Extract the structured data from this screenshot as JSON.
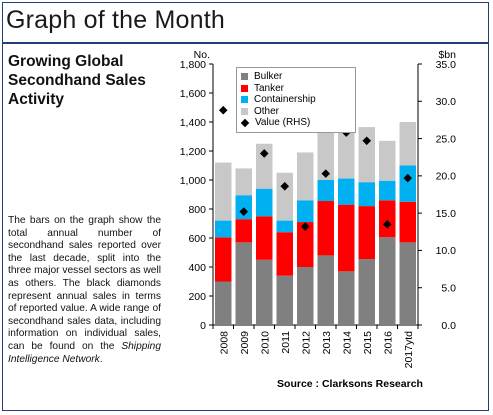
{
  "header": {
    "title": "Graph of the Month"
  },
  "sidebar": {
    "subtitle": "Growing Global Secondhand Sales Activity",
    "description_main": "The bars on the graph show the total annual number of secondhand sales reported over the last decade, split into the three major vessel sectors as well as others. The black diamonds represent annual sales in terms of reported value. A wide range of secondhand sales data, including information on individual sales, can be found on the ",
    "description_em": "Shipping Intelligence Network",
    "description_end": "."
  },
  "footer": {
    "source": "Source : Clarksons Research"
  },
  "colors": {
    "Bulker": "#808080",
    "Tanker": "#ff0000",
    "Containership": "#00b0f0",
    "Other": "#c8c8c8",
    "Value (RHS)": "#000000",
    "frame": "#1f3f7a"
  },
  "chart_data": {
    "type": "bar",
    "stacked": true,
    "categories": [
      "2008",
      "2009",
      "2010",
      "2011",
      "2012",
      "2013",
      "2014",
      "2015",
      "2016",
      "2017ytd"
    ],
    "left_axis_label": "No.",
    "right_axis_label": "$bn",
    "ylim": [
      0,
      1800
    ],
    "y_ticks": [
      0,
      200,
      400,
      600,
      800,
      1000,
      1200,
      1400,
      1600,
      1800
    ],
    "y_tick_labels": [
      "0",
      "200",
      "400",
      "600",
      "800",
      "1,000",
      "1,200",
      "1,400",
      "1,600",
      "1,800"
    ],
    "y2lim": [
      0,
      35
    ],
    "y2_ticks": [
      0,
      5,
      10,
      15,
      20,
      25,
      30,
      35
    ],
    "y2_tick_labels": [
      "0.0",
      "5.0",
      "10.0",
      "15.0",
      "20.0",
      "25.0",
      "30.0",
      "35.0"
    ],
    "series": [
      {
        "name": "Bulker",
        "values": [
          300,
          570,
          450,
          340,
          400,
          480,
          370,
          455,
          605,
          570
        ]
      },
      {
        "name": "Tanker",
        "values": [
          305,
          160,
          300,
          300,
          310,
          375,
          460,
          365,
          255,
          280
        ]
      },
      {
        "name": "Containership",
        "values": [
          115,
          165,
          190,
          80,
          150,
          145,
          180,
          165,
          135,
          250
        ]
      },
      {
        "name": "Other",
        "values": [
          400,
          185,
          310,
          330,
          330,
          350,
          330,
          380,
          275,
          300
        ]
      }
    ],
    "value_series": {
      "name": "Value (RHS)",
      "axis": "right",
      "marker": "diamond",
      "values": [
        28.8,
        15.2,
        23.0,
        18.6,
        13.2,
        20.3,
        25.8,
        24.7,
        13.5,
        19.7
      ]
    },
    "legend": {
      "position": "top-left",
      "entries": [
        "Bulker",
        "Tanker",
        "Containership",
        "Other",
        "Value (RHS)"
      ]
    },
    "grid": false
  }
}
